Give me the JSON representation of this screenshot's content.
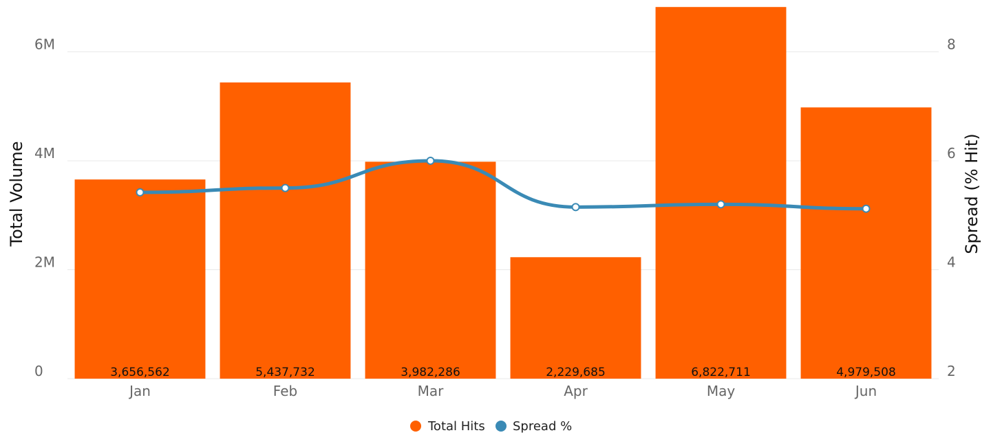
{
  "chart_data": {
    "type": "bar",
    "categories": [
      "Jan",
      "Feb",
      "Mar",
      "Apr",
      "May",
      "Jun"
    ],
    "series": [
      {
        "name": "Total Hits",
        "type": "bar",
        "axis": "left",
        "color": "#ff6000",
        "values": [
          3656562,
          5437732,
          3982286,
          2229685,
          6822711,
          4979508
        ],
        "data_labels": [
          "3,656,562",
          "5,437,732",
          "3,982,286",
          "2,229,685",
          "6,822,711",
          "4,979,508"
        ]
      },
      {
        "name": "Spread %",
        "type": "line",
        "axis": "right",
        "color": "#3a8ab5",
        "smooth": true,
        "values": [
          5.42,
          5.5,
          6.0,
          5.15,
          5.2,
          5.12
        ]
      }
    ],
    "ylabel_left": "Total Volume",
    "ylabel_right": "Spread (% Hit)",
    "ylim_left": [
      0,
      6800000
    ],
    "ylim_right": [
      2,
      8.8
    ],
    "yticks_left": [
      {
        "value": 0,
        "label": "0"
      },
      {
        "value": 2000000,
        "label": "2M"
      },
      {
        "value": 4000000,
        "label": "4M"
      },
      {
        "value": 6000000,
        "label": "6M"
      }
    ],
    "yticks_right": [
      {
        "value": 2,
        "label": "2"
      },
      {
        "value": 4,
        "label": "4"
      },
      {
        "value": 6,
        "label": "6"
      },
      {
        "value": 8,
        "label": "8"
      }
    ],
    "grid": true,
    "legend_position": "bottom-center"
  }
}
